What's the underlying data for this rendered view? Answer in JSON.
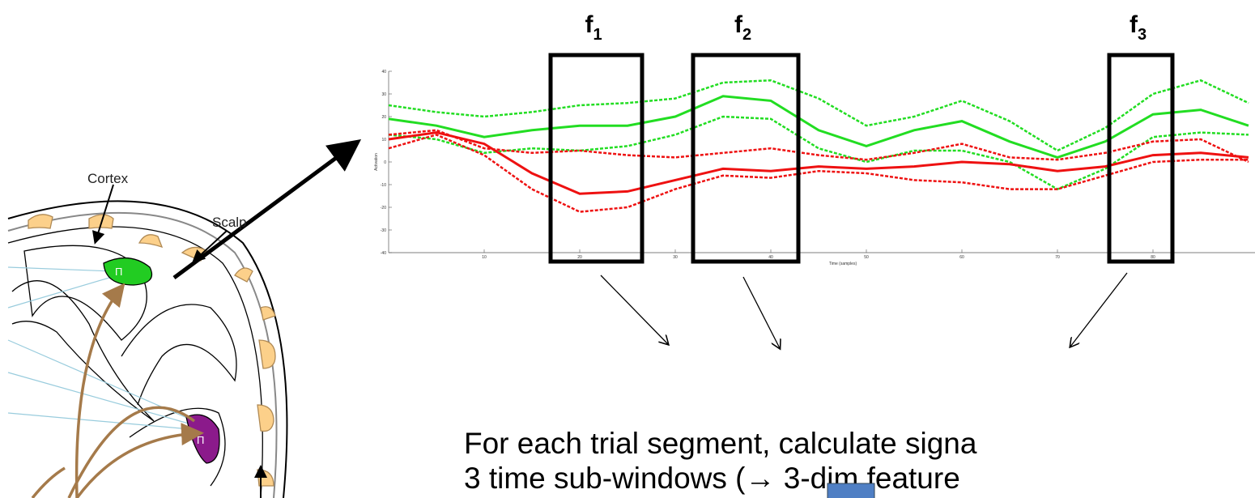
{
  "diagram": {
    "cortex_label": "Cortex",
    "scalp_label": "Scalp",
    "source_symbol": "Π"
  },
  "plot": {
    "x_label": "Time (samples)",
    "y_label": "Activation",
    "xlim": [
      0,
      90
    ],
    "ylim": [
      -40,
      40
    ],
    "xticks": [
      10,
      20,
      30,
      40,
      50,
      60,
      70,
      80
    ],
    "yticks": [
      -40,
      -30,
      -20,
      -10,
      0,
      10,
      20,
      30,
      40
    ],
    "x": [
      0,
      5,
      10,
      15,
      20,
      25,
      30,
      35,
      40,
      45,
      50,
      55,
      60,
      65,
      70,
      75,
      80,
      85,
      90
    ],
    "series": [
      {
        "color": "#22dd22",
        "style": "dashed",
        "values": [
          25,
          22,
          20,
          22,
          25,
          26,
          28,
          35,
          36,
          28,
          16,
          20,
          27,
          18,
          5,
          15,
          30,
          36,
          26
        ]
      },
      {
        "color": "#22dd22",
        "style": "solid",
        "values": [
          19,
          16,
          11,
          14,
          16,
          16,
          20,
          29,
          27,
          14,
          7,
          14,
          18,
          9,
          2,
          9,
          21,
          23,
          16
        ]
      },
      {
        "color": "#22dd22",
        "style": "dashed",
        "values": [
          12,
          10,
          4,
          6,
          5,
          7,
          12,
          20,
          19,
          6,
          0,
          5,
          5,
          0,
          -12,
          -3,
          11,
          13,
          12
        ]
      },
      {
        "color": "#ee1111",
        "style": "dashed",
        "values": [
          12,
          14,
          6,
          4,
          5,
          3,
          2,
          4,
          6,
          3,
          1,
          4,
          8,
          2,
          1,
          4,
          9,
          10,
          0
        ]
      },
      {
        "color": "#ee1111",
        "style": "solid",
        "values": [
          10,
          13,
          8,
          -5,
          -14,
          -13,
          -8,
          -3,
          -4,
          -2,
          -3,
          -2,
          0,
          -1,
          -4,
          -2,
          3,
          4,
          2
        ]
      },
      {
        "color": "#ee1111",
        "style": "dashed",
        "values": [
          6,
          12,
          3,
          -12,
          -22,
          -20,
          -12,
          -6,
          -7,
          -4,
          -5,
          -8,
          -9,
          -12,
          -12,
          -6,
          0,
          1,
          1
        ]
      }
    ]
  },
  "windows": [
    {
      "letter": "f",
      "index": "1"
    },
    {
      "letter": "f",
      "index": "2"
    },
    {
      "letter": "f",
      "index": "3"
    }
  ],
  "caption": {
    "line1": "For each trial segment, calculate signa",
    "line2": "3 time sub-windows (→ 3-dim feature"
  }
}
